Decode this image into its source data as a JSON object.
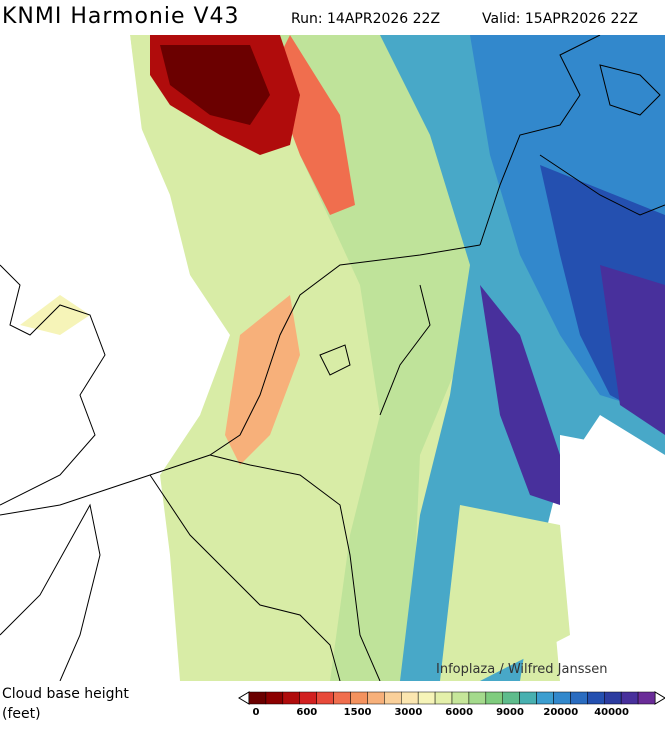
{
  "header": {
    "title": "KNMI Harmonie V43",
    "run": "Run: 14APR2026 22Z",
    "valid": "Valid: 15APR2026 22Z"
  },
  "credit": "Infoplaza / Wilfred Janssen",
  "legend": {
    "title": "Cloud base height",
    "unit": "(feet)",
    "ticks": [
      "0",
      "600",
      "1500",
      "3000",
      "6000",
      "9000",
      "20000",
      "40000"
    ],
    "colors": [
      "#6b0000",
      "#8c0000",
      "#b00c0c",
      "#d22020",
      "#e84a3a",
      "#f06e4e",
      "#f4925e",
      "#f7b07a",
      "#fad09a",
      "#fbe6b0",
      "#f6f4b8",
      "#e4f0aa",
      "#c6e69a",
      "#a4da8c",
      "#7fcc7e",
      "#5ebc8c",
      "#48b0b0",
      "#3c9ed0",
      "#3288cc",
      "#2a6cc0",
      "#2450b0",
      "#2c3ca0",
      "#48309c",
      "#6a2c98"
    ]
  }
}
